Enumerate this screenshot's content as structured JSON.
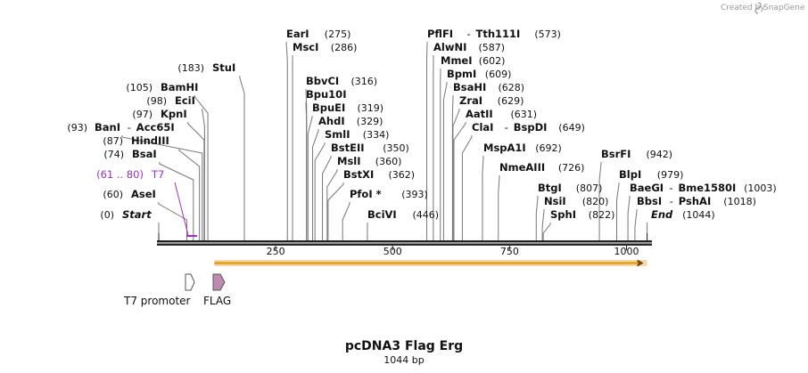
{
  "credit": {
    "text": "Created by",
    "brand": "SnapGene"
  },
  "sequence": {
    "name": "pcDNA3 Flag Erg",
    "length_label": "1044 bp",
    "length": 1044
  },
  "axis": {
    "ticks": [
      250,
      500,
      750,
      1000
    ]
  },
  "sites": [
    {
      "id": "start",
      "name": "Start",
      "pos_label": "(0)",
      "pos": 0,
      "italic": true
    },
    {
      "id": "asei",
      "name": "AseI",
      "pos_label": "(60)",
      "pos": 60
    },
    {
      "id": "bsai",
      "name": "BsaI",
      "pos_label": "(74)",
      "pos": 74
    },
    {
      "id": "hindiii",
      "name": "HindIII",
      "pos_label": "(87)",
      "pos": 87
    },
    {
      "id": "bani",
      "name": "BanI",
      "pos_label": "(93)",
      "pos": 93,
      "alt": "Acc65I"
    },
    {
      "id": "kpni",
      "name": "KpnI",
      "pos_label": "(97)",
      "pos": 97
    },
    {
      "id": "ecii",
      "name": "EciI",
      "pos_label": "(98)",
      "pos": 98
    },
    {
      "id": "bamhi",
      "name": "BamHI",
      "pos_label": "(105)",
      "pos": 105
    },
    {
      "id": "stui",
      "name": "StuI",
      "pos_label": "(183)",
      "pos": 183
    },
    {
      "id": "eari",
      "name": "EarI",
      "pos_label": "(275)",
      "pos": 275
    },
    {
      "id": "msci",
      "name": "MscI",
      "pos_label": "(286)",
      "pos": 286
    },
    {
      "id": "bbvci",
      "name": "BbvCI",
      "pos_label": "(316)",
      "pos": 316
    },
    {
      "id": "bpu10i",
      "name": "Bpu10I",
      "pos_label": "",
      "pos": 316
    },
    {
      "id": "bpueii",
      "name": "BpuEI",
      "pos_label": "(319)",
      "pos": 319
    },
    {
      "id": "ahdi",
      "name": "AhdI",
      "pos_label": "(329)",
      "pos": 329
    },
    {
      "id": "smli",
      "name": "SmlI",
      "pos_label": "(334)",
      "pos": 334
    },
    {
      "id": "bsteii",
      "name": "BstEII",
      "pos_label": "(350)",
      "pos": 350
    },
    {
      "id": "msli",
      "name": "MslI",
      "pos_label": "(360)",
      "pos": 360
    },
    {
      "id": "bstxi",
      "name": "BstXI",
      "pos_label": "(362)",
      "pos": 362
    },
    {
      "id": "pfoi",
      "name": "PfoI *",
      "pos_label": "(393)",
      "pos": 393
    },
    {
      "id": "bcivi",
      "name": "BciVI",
      "pos_label": "(446)",
      "pos": 446
    },
    {
      "id": "pflfi",
      "name": "PflFI",
      "pos_label": "(573)",
      "pos": 573,
      "alt": "Tth111I"
    },
    {
      "id": "alwni",
      "name": "AlwNI",
      "pos_label": "(587)",
      "pos": 587
    },
    {
      "id": "mmei",
      "name": "MmeI",
      "pos_label": "(602)",
      "pos": 602
    },
    {
      "id": "bpmi",
      "name": "BpmI",
      "pos_label": "(609)",
      "pos": 609
    },
    {
      "id": "bsahi",
      "name": "BsaHI",
      "pos_label": "(628)",
      "pos": 628
    },
    {
      "id": "zrai",
      "name": "ZraI",
      "pos_label": "(629)",
      "pos": 629
    },
    {
      "id": "aatii",
      "name": "AatII",
      "pos_label": "(631)",
      "pos": 631
    },
    {
      "id": "clai",
      "name": "ClaI",
      "pos_label": "(649)",
      "pos": 649,
      "alt": "BspDI"
    },
    {
      "id": "mspa1i",
      "name": "MspA1I",
      "pos_label": "(692)",
      "pos": 692
    },
    {
      "id": "nmeaiii",
      "name": "NmeAIII",
      "pos_label": "(726)",
      "pos": 726
    },
    {
      "id": "btgi",
      "name": "BtgI",
      "pos_label": "(807)",
      "pos": 807
    },
    {
      "id": "nsii",
      "name": "NsiI",
      "pos_label": "(820)",
      "pos": 820
    },
    {
      "id": "sphi",
      "name": "SphI",
      "pos_label": "(822)",
      "pos": 822
    },
    {
      "id": "bsrfi",
      "name": "BsrFI",
      "pos_label": "(942)",
      "pos": 942
    },
    {
      "id": "blpi",
      "name": "BlpI",
      "pos_label": "(979)",
      "pos": 979
    },
    {
      "id": "baegi",
      "name": "BaeGI",
      "pos_label": "(1003)",
      "pos": 1003,
      "alt": "Bme1580I"
    },
    {
      "id": "bbsi",
      "name": "BbsI",
      "pos_label": "(1018)",
      "pos": 1018,
      "alt": "PshAI"
    },
    {
      "id": "end",
      "name": "End",
      "pos_label": "(1044)",
      "pos": 1044,
      "italic": true
    }
  ],
  "primer": {
    "name": "T7",
    "range_label": "(61 .. 80)",
    "start": 61,
    "end": 80,
    "color": "#9b30c9"
  },
  "orf": {
    "start": 119,
    "end": 1044,
    "color": "#f0a020",
    "stroke": "#6b4a10"
  },
  "features": [
    {
      "name": "T7 promoter",
      "kind": "promoter",
      "fill": "#ffffff",
      "stroke": "#555555"
    },
    {
      "name": "FLAG",
      "kind": "tag",
      "fill": "#c08ab0",
      "stroke": "#555555"
    }
  ]
}
